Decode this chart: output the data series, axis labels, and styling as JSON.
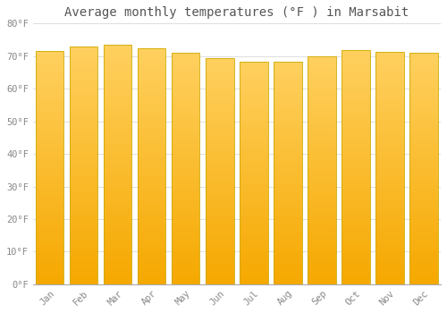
{
  "title": "Average monthly temperatures (°F ) in Marsabit",
  "months": [
    "Jan",
    "Feb",
    "Mar",
    "Apr",
    "May",
    "Jun",
    "Jul",
    "Aug",
    "Sep",
    "Oct",
    "Nov",
    "Dec"
  ],
  "values": [
    71.6,
    73.0,
    73.4,
    72.3,
    71.1,
    69.3,
    68.2,
    68.2,
    69.8,
    71.8,
    71.2,
    71.1
  ],
  "ylim": [
    0,
    80
  ],
  "yticks": [
    0,
    10,
    20,
    30,
    40,
    50,
    60,
    70,
    80
  ],
  "ytick_labels": [
    "0°F",
    "10°F",
    "20°F",
    "30°F",
    "40°F",
    "50°F",
    "60°F",
    "70°F",
    "80°F"
  ],
  "bar_color_top": "#FFD060",
  "bar_color_bottom": "#F5A800",
  "background_color": "#FFFFFF",
  "plot_bg_color": "#FFFFFF",
  "grid_color": "#DDDDDD",
  "title_fontsize": 10,
  "tick_fontsize": 7.5,
  "tick_color": "#888888",
  "bar_edge_color": "#CCAA00",
  "bar_width": 0.82
}
